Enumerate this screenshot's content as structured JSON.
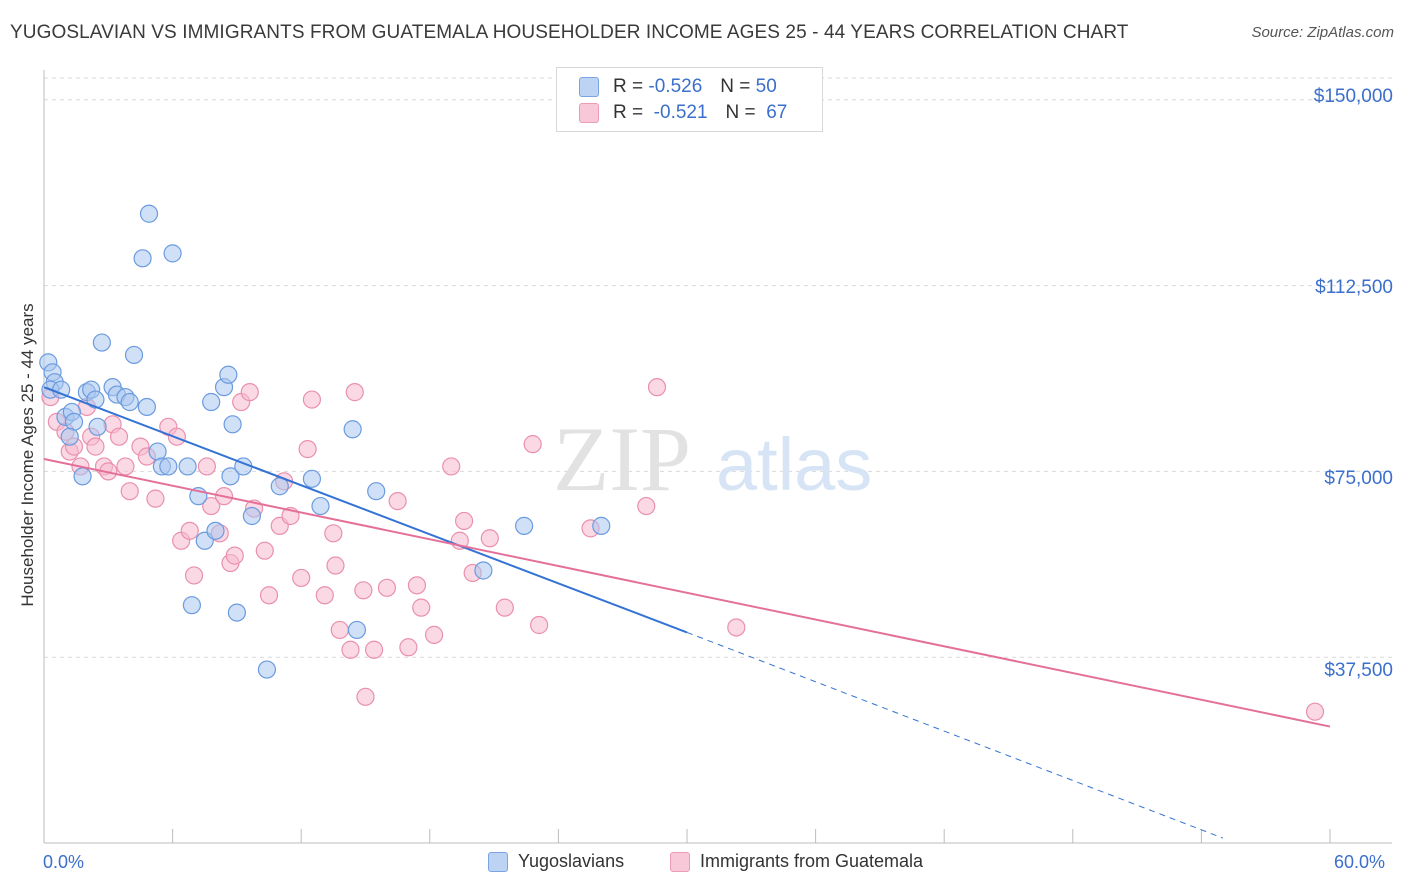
{
  "header": {
    "title": "YUGOSLAVIAN VS IMMIGRANTS FROM GUATEMALA HOUSEHOLDER INCOME AGES 25 - 44 YEARS CORRELATION CHART",
    "source": "Source: ZipAtlas.com"
  },
  "watermark": {
    "zip": "ZIP",
    "atlas": "atlas"
  },
  "legend_top": {
    "rows": [
      {
        "r_label": "R =",
        "r_value": "-0.526",
        "n_label": "N =",
        "n_value": "50"
      },
      {
        "r_label": "R =",
        "r_value": "-0.521",
        "n_label": "N =",
        "n_value": "67"
      }
    ]
  },
  "chart_data": {
    "type": "scatter",
    "title": "YUGOSLAVIAN VS IMMIGRANTS FROM GUATEMALA HOUSEHOLDER INCOME AGES 25 - 44 YEARS CORRELATION CHART",
    "xlabel": "",
    "ylabel": "Householder Income Ages 25 - 44 years",
    "xlim": [
      0,
      60
    ],
    "ylim": [
      0,
      155000
    ],
    "x_tick_labels": [
      "0.0%",
      "60.0%"
    ],
    "y_ticks": [
      37500,
      75000,
      112500,
      150000
    ],
    "y_tick_labels": [
      "$37,500",
      "$75,000",
      "$112,500",
      "$150,000"
    ],
    "grid": true,
    "legend_position": "bottom",
    "colors": {
      "yugoslavians_fill": "#a9c6ef",
      "yugoslavians_stroke": "#6b9be0",
      "yugoslavians_line": "#3473d4",
      "guatemala_fill": "#f5b9cd",
      "guatemala_stroke": "#ea90ad",
      "guatemala_line": "#e4709a",
      "accent_text": "#3b6fcb"
    },
    "series": [
      {
        "name": "Yugoslavians",
        "r": -0.526,
        "n": 50,
        "trend": {
          "x1": 0,
          "y1": 92000,
          "x2": 30,
          "y2": 42500,
          "dashed_to_x": 55,
          "dashed_to_y": 1000
        },
        "points": [
          [
            0.2,
            97000
          ],
          [
            0.4,
            95000
          ],
          [
            0.5,
            93000
          ],
          [
            0.3,
            91500
          ],
          [
            0.8,
            91500
          ],
          [
            1.0,
            86000
          ],
          [
            1.3,
            87000
          ],
          [
            1.4,
            85000
          ],
          [
            1.2,
            82000
          ],
          [
            2.0,
            91000
          ],
          [
            2.2,
            91500
          ],
          [
            2.4,
            89500
          ],
          [
            2.5,
            84000
          ],
          [
            2.7,
            101000
          ],
          [
            3.2,
            92000
          ],
          [
            3.4,
            90500
          ],
          [
            3.8,
            90000
          ],
          [
            4.0,
            89000
          ],
          [
            4.2,
            98500
          ],
          [
            4.6,
            118000
          ],
          [
            4.9,
            127000
          ],
          [
            5.3,
            79000
          ],
          [
            5.5,
            76000
          ],
          [
            5.8,
            76000
          ],
          [
            6.0,
            119000
          ],
          [
            6.7,
            76000
          ],
          [
            6.9,
            48000
          ],
          [
            7.2,
            70000
          ],
          [
            7.5,
            61000
          ],
          [
            7.8,
            89000
          ],
          [
            8.0,
            63000
          ],
          [
            8.4,
            92000
          ],
          [
            8.7,
            74000
          ],
          [
            8.8,
            84500
          ],
          [
            9.3,
            76000
          ],
          [
            8.6,
            94500
          ],
          [
            9.0,
            46500
          ],
          [
            9.7,
            66000
          ],
          [
            10.4,
            35000
          ],
          [
            11.0,
            72000
          ],
          [
            12.5,
            73500
          ],
          [
            12.9,
            68000
          ],
          [
            14.4,
            83500
          ],
          [
            14.6,
            43000
          ],
          [
            15.5,
            71000
          ],
          [
            20.5,
            55000
          ],
          [
            22.4,
            64000
          ],
          [
            26.0,
            64000
          ],
          [
            1.8,
            74000
          ],
          [
            4.8,
            88000
          ]
        ]
      },
      {
        "name": "Immigrants from Guatemala",
        "r": -0.521,
        "n": 67,
        "trend": {
          "x1": 0,
          "y1": 77500,
          "x2": 60,
          "y2": 23500
        },
        "points": [
          [
            0.3,
            90000
          ],
          [
            0.6,
            85000
          ],
          [
            1.0,
            83000
          ],
          [
            1.2,
            79000
          ],
          [
            1.4,
            80000
          ],
          [
            1.7,
            76000
          ],
          [
            2.0,
            88000
          ],
          [
            2.2,
            82000
          ],
          [
            2.4,
            80000
          ],
          [
            2.8,
            76000
          ],
          [
            3.0,
            75000
          ],
          [
            3.2,
            84500
          ],
          [
            3.5,
            82000
          ],
          [
            3.8,
            76000
          ],
          [
            4.0,
            71000
          ],
          [
            4.5,
            80000
          ],
          [
            4.8,
            78000
          ],
          [
            5.2,
            69500
          ],
          [
            5.8,
            84000
          ],
          [
            6.2,
            82000
          ],
          [
            6.4,
            61000
          ],
          [
            6.8,
            63000
          ],
          [
            7.0,
            54000
          ],
          [
            7.6,
            76000
          ],
          [
            7.8,
            68000
          ],
          [
            8.2,
            62500
          ],
          [
            8.4,
            70000
          ],
          [
            8.7,
            56500
          ],
          [
            8.9,
            58000
          ],
          [
            9.2,
            89000
          ],
          [
            9.6,
            91000
          ],
          [
            9.8,
            67500
          ],
          [
            10.3,
            59000
          ],
          [
            10.5,
            50000
          ],
          [
            11.0,
            64000
          ],
          [
            11.5,
            66000
          ],
          [
            11.2,
            73000
          ],
          [
            12.0,
            53500
          ],
          [
            12.3,
            79500
          ],
          [
            12.5,
            89500
          ],
          [
            13.1,
            50000
          ],
          [
            13.5,
            62500
          ],
          [
            13.8,
            43000
          ],
          [
            13.6,
            56000
          ],
          [
            14.3,
            39000
          ],
          [
            14.5,
            91000
          ],
          [
            14.9,
            51000
          ],
          [
            15.0,
            29500
          ],
          [
            15.4,
            39000
          ],
          [
            16.0,
            51500
          ],
          [
            16.5,
            69000
          ],
          [
            17.0,
            39500
          ],
          [
            17.4,
            52000
          ],
          [
            17.6,
            47500
          ],
          [
            18.2,
            42000
          ],
          [
            19.0,
            76000
          ],
          [
            19.4,
            61000
          ],
          [
            19.6,
            65000
          ],
          [
            20.0,
            54500
          ],
          [
            20.8,
            61500
          ],
          [
            21.5,
            47500
          ],
          [
            22.8,
            80500
          ],
          [
            23.1,
            44000
          ],
          [
            25.5,
            63500
          ],
          [
            28.1,
            68000
          ],
          [
            28.6,
            92000
          ],
          [
            32.3,
            43500
          ]
        ]
      }
    ],
    "extra_points": [
      [
        59.3,
        26500
      ]
    ]
  },
  "bottom_legend": {
    "items": [
      {
        "label": "Yugoslavians"
      },
      {
        "label": "Immigrants from Guatemala"
      }
    ]
  }
}
